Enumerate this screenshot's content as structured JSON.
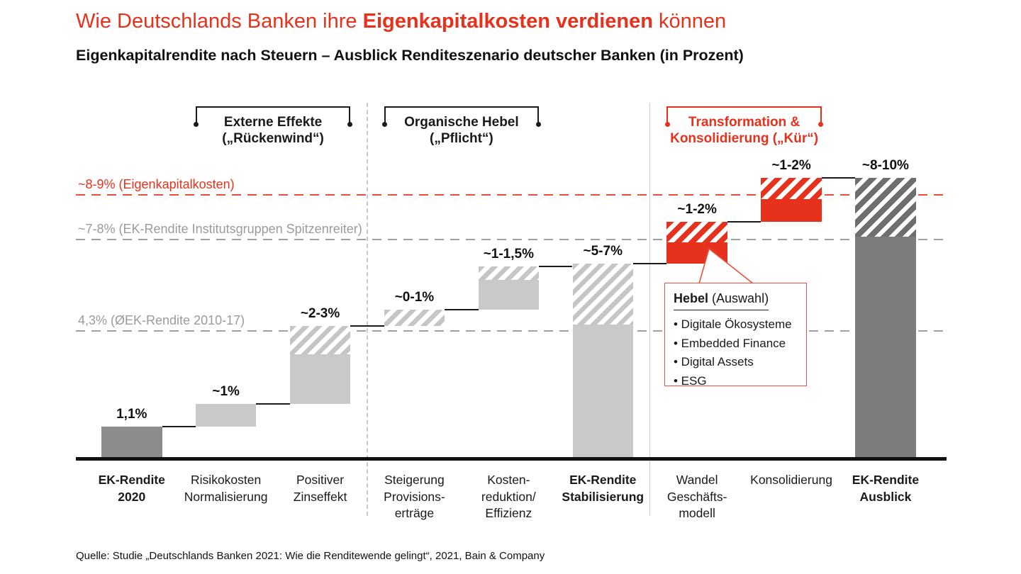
{
  "header": {
    "title": {
      "pre": "Wie Deutschlands Banken ihre ",
      "highlight": "Eigenkapitalkosten verdienen",
      "post": " können"
    },
    "subtitle": "Eigenkapitalrendite nach Steuern – Ausblick Renditeszenario deutscher Banken (in Prozent)"
  },
  "footer": {
    "source": "Quelle: Studie „Deutschlands Banken 2021: Wie die Renditewende gelingt“, 2021, Bain & Company"
  },
  "colors": {
    "red": "#e6321d",
    "red_dash_line": "#ee4d39",
    "callout_border": "#e8503f",
    "gray_text": "#9b9b9b",
    "gray_dash_line": "#a0a0a0",
    "dark_bar": "#8c8c8c",
    "dark_bar_outlook": "#7c7c7c",
    "dark_stripe": "#6e6e6e",
    "light_bar": "#c9c9c9",
    "light_stripe": "#c5c5c5",
    "separator_gray": "#c9c9c9",
    "black": "#1a1a1a"
  },
  "chart_data": {
    "type": "bar",
    "subtype": "waterfall",
    "title": "Eigenkapitalrendite nach Steuern – Ausblick Renditeszenario deutscher Banken",
    "unit": "Prozent",
    "ylim": [
      0,
      10.5
    ],
    "grid": "off",
    "categories": [
      "EK-Rendite 2020",
      "Risikokosten Normalisierung",
      "Positiver Zinseffekt",
      "Steigerung Provisionserträge",
      "Kostenreduktion/Effizienz",
      "EK-Rendite Stabilisierung",
      "Wandel Geschäftsmodell",
      "Konsolidierung",
      "EK-Rendite Ausblick"
    ],
    "bars": [
      {
        "category_lines": [
          "EK-Rendite",
          "2020"
        ],
        "bold": true,
        "label": "1,1%",
        "start": 0,
        "end": 1.1,
        "solid_to": 1.1,
        "style": "dark",
        "kind": "total"
      },
      {
        "category_lines": [
          "Risikokosten",
          "Normalisierung"
        ],
        "bold": false,
        "label": "~1%",
        "start": 1.1,
        "end": 1.85,
        "solid_to": 1.85,
        "style": "light",
        "kind": "delta"
      },
      {
        "category_lines": [
          "Positiver",
          "Zinseffekt"
        ],
        "bold": false,
        "label": "~2-3%",
        "start": 1.85,
        "end": 4.45,
        "solid_to": 3.5,
        "style": "light",
        "kind": "delta"
      },
      {
        "category_lines": [
          "Steigerung",
          "Provisions-",
          "erträge"
        ],
        "bold": false,
        "label": "~0-1%",
        "start": 4.45,
        "end": 5.0,
        "solid_to": 4.45,
        "style": "light",
        "kind": "delta"
      },
      {
        "category_lines": [
          "Kosten-",
          "reduktion/",
          "Effizienz"
        ],
        "bold": false,
        "label": "~1-1,5%",
        "start": 5.0,
        "end": 6.45,
        "solid_to": 6.0,
        "style": "light",
        "kind": "delta"
      },
      {
        "category_lines": [
          "EK-Rendite",
          "Stabilisierung"
        ],
        "bold": true,
        "label": "~5-7%",
        "start": 0,
        "end": 6.55,
        "solid_to": 4.5,
        "style": "light",
        "kind": "total"
      },
      {
        "category_lines": [
          "Wandel",
          "Geschäfts-",
          "modell"
        ],
        "bold": false,
        "label": "~1-2%",
        "start": 6.55,
        "end": 7.95,
        "solid_to": 7.25,
        "style": "red",
        "kind": "delta"
      },
      {
        "category_lines": [
          "Konsolidierung"
        ],
        "bold": false,
        "label": "~1-2%",
        "start": 7.95,
        "end": 9.4,
        "solid_to": 8.7,
        "style": "red",
        "kind": "delta"
      },
      {
        "category_lines": [
          "EK-Rendite",
          "Ausblick"
        ],
        "bold": true,
        "label": "~8-10%",
        "start": 0,
        "end": 9.4,
        "solid_to": 7.45,
        "style": "dark",
        "kind": "total"
      }
    ],
    "reference_lines": [
      {
        "label": "~8-9% (Eigenkapitalkosten)",
        "value": 8.85,
        "color": "red",
        "style": "dashed"
      },
      {
        "label": "~7-8% (EK-Rendite Institutsgruppen Spitzenreiter)",
        "value": 7.35,
        "color": "gray",
        "style": "dashed"
      },
      {
        "label": "4,3% (ØEK-Rendite 2010-17)",
        "value": 4.3,
        "color": "gray",
        "style": "dashed"
      }
    ],
    "groups": [
      {
        "lines": [
          "Externe Effekte",
          "(„Rückenwind“)"
        ],
        "from_bar": 1,
        "to_bar": 2,
        "color": "black"
      },
      {
        "lines": [
          "Organische Hebel",
          "(„Pflicht“)"
        ],
        "from_bar": 3,
        "to_bar": 4,
        "color": "black"
      },
      {
        "lines": [
          "Transformation &",
          "Konsolidierung („Kür“)"
        ],
        "from_bar": 6,
        "to_bar": 7,
        "color": "red"
      }
    ],
    "separators": [
      {
        "between_bars": [
          2,
          3
        ],
        "style": "dashed"
      },
      {
        "between_bars": [
          5,
          6
        ],
        "style": "solid"
      }
    ],
    "callout": {
      "heading_bold": "Hebel",
      "heading_rest": " (Auswahl)",
      "items": [
        "Digitale Ökosysteme",
        "Embedded Finance",
        "Digital Assets",
        "ESG"
      ],
      "attached_to_bar": 6
    }
  }
}
